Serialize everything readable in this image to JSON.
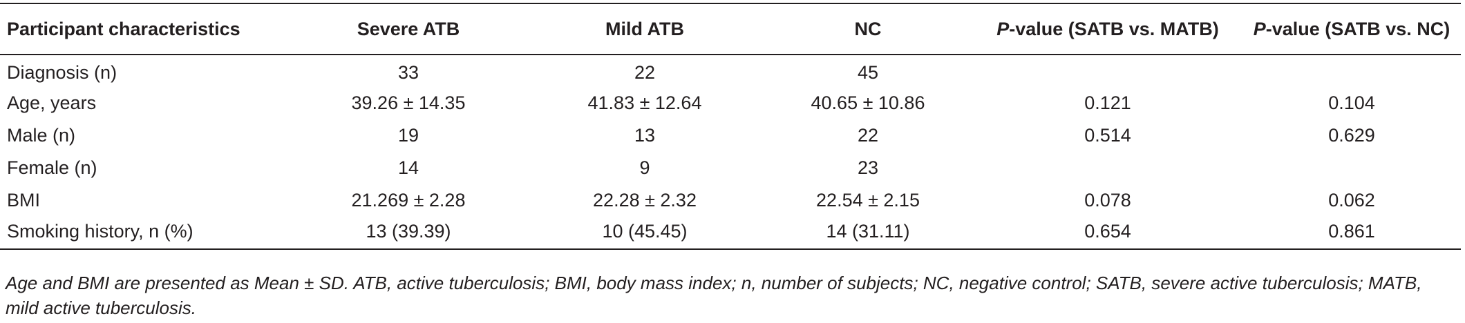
{
  "table": {
    "headers": [
      {
        "prefix": "",
        "text": "Participant characteristics"
      },
      {
        "prefix": "",
        "text": "Severe ATB"
      },
      {
        "prefix": "",
        "text": "Mild ATB"
      },
      {
        "prefix": "",
        "text": "NC"
      },
      {
        "prefix": "P",
        "text": "-value (SATB vs. MATB)"
      },
      {
        "prefix": "P",
        "text": "-value (SATB vs. NC)"
      }
    ],
    "rows": [
      [
        "Diagnosis (n)",
        "33",
        "22",
        "45",
        "",
        ""
      ],
      [
        "Age, years",
        "39.26 ± 14.35",
        "41.83 ± 12.64",
        "40.65 ± 10.86",
        "0.121",
        "0.104"
      ],
      [
        "Male (n)",
        "19",
        "13",
        "22",
        "0.514",
        "0.629"
      ],
      [
        "Female (n)",
        "14",
        "9",
        "23",
        "",
        ""
      ],
      [
        "BMI",
        "21.269 ± 2.28",
        "22.28 ± 2.32",
        "22.54 ± 2.15",
        "0.078",
        "0.062"
      ],
      [
        "Smoking history, n (%)",
        "13 (39.39)",
        "10 (45.45)",
        "14 (31.11)",
        "0.654",
        "0.861"
      ]
    ]
  },
  "footnote": "Age and BMI are presented as Mean ± SD. ATB, active tuberculosis; BMI, body mass index; n, number of subjects; NC, negative control; SATB, severe active tuberculosis; MATB, mild active tuberculosis."
}
